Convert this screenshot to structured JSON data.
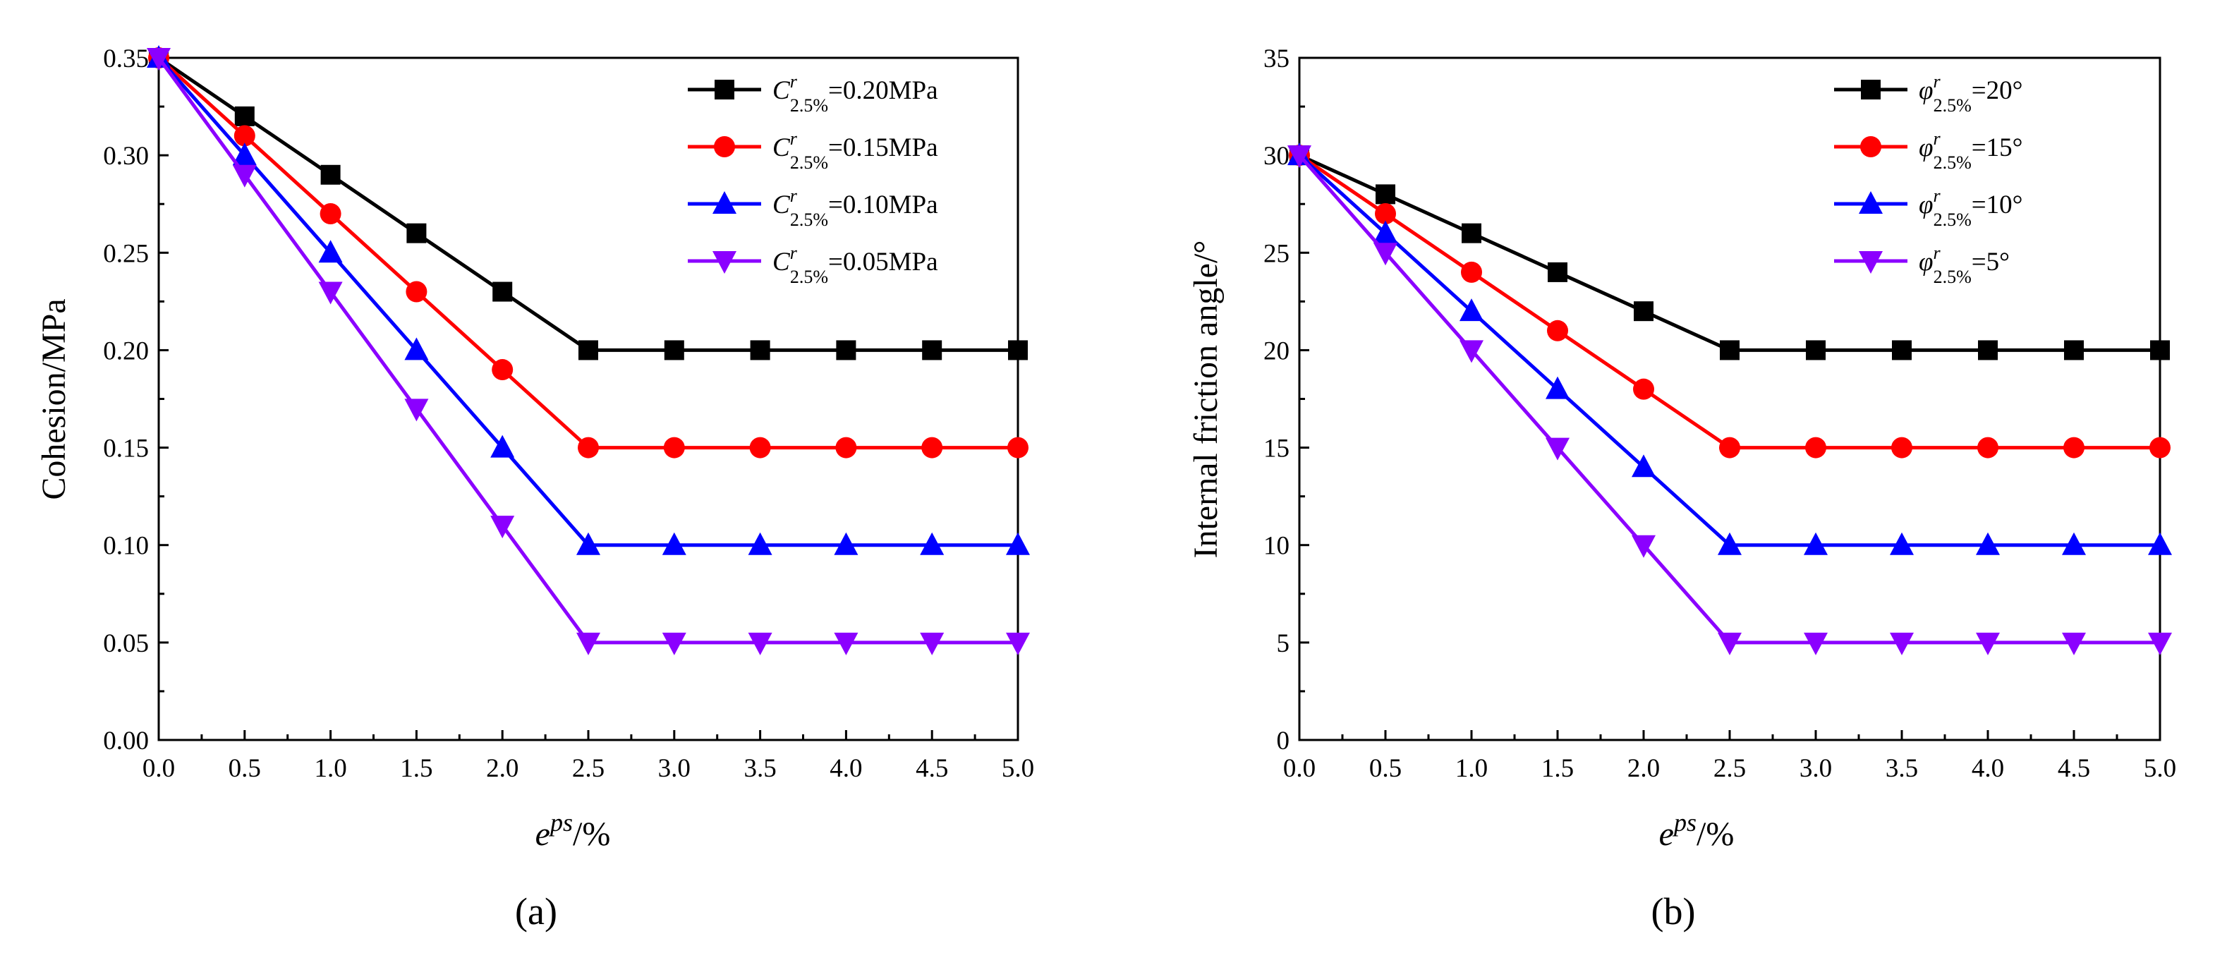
{
  "chart_data": [
    {
      "type": "line",
      "panel": "a",
      "caption": "(a)",
      "ylabel": "Cohesion/MPa",
      "xlabel": {
        "base": "e",
        "sup": "ps",
        "suffix": "/%"
      },
      "x": [
        0.0,
        0.5,
        1.0,
        1.5,
        2.0,
        2.5,
        3.0,
        3.5,
        4.0,
        4.5,
        5.0
      ],
      "xlim": [
        0.0,
        5.0
      ],
      "ylim": [
        0.0,
        0.35
      ],
      "xticks": [
        "0.0",
        "0.5",
        "1.0",
        "1.5",
        "2.0",
        "2.5",
        "3.0",
        "3.5",
        "4.0",
        "4.5",
        "5.0"
      ],
      "yticks": [
        "0.00",
        "0.05",
        "0.10",
        "0.15",
        "0.20",
        "0.25",
        "0.30",
        "0.35"
      ],
      "ytick_values": [
        0.0,
        0.05,
        0.1,
        0.15,
        0.2,
        0.25,
        0.3,
        0.35
      ],
      "legend_position": "top-right",
      "series": [
        {
          "legend": {
            "base": "C",
            "sup": "r",
            "sub": "2.5%",
            "text": "=0.20MPa"
          },
          "marker": "square",
          "color": "#000000",
          "values": [
            0.35,
            0.32,
            0.29,
            0.26,
            0.23,
            0.2,
            0.2,
            0.2,
            0.2,
            0.2,
            0.2
          ]
        },
        {
          "legend": {
            "base": "C",
            "sup": "r",
            "sub": "2.5%",
            "text": "=0.15MPa"
          },
          "marker": "circle",
          "color": "#ff0000",
          "values": [
            0.35,
            0.31,
            0.27,
            0.23,
            0.19,
            0.15,
            0.15,
            0.15,
            0.15,
            0.15,
            0.15
          ]
        },
        {
          "legend": {
            "base": "C",
            "sup": "r",
            "sub": "2.5%",
            "text": "=0.10MPa"
          },
          "marker": "triangle-up",
          "color": "#0000ff",
          "values": [
            0.35,
            0.3,
            0.25,
            0.2,
            0.15,
            0.1,
            0.1,
            0.1,
            0.1,
            0.1,
            0.1
          ]
        },
        {
          "legend": {
            "base": "C",
            "sup": "r",
            "sub": "2.5%",
            "text": "=0.05MPa"
          },
          "marker": "triangle-down",
          "color": "#8b00ff",
          "values": [
            0.35,
            0.29,
            0.23,
            0.17,
            0.11,
            0.05,
            0.05,
            0.05,
            0.05,
            0.05,
            0.05
          ]
        }
      ]
    },
    {
      "type": "line",
      "panel": "b",
      "caption": "(b)",
      "ylabel": "Internal friction angle/°",
      "xlabel": {
        "base": "e",
        "sup": "ps",
        "suffix": "/%"
      },
      "x": [
        0.0,
        0.5,
        1.0,
        1.5,
        2.0,
        2.5,
        3.0,
        3.5,
        4.0,
        4.5,
        5.0
      ],
      "xlim": [
        0.0,
        5.0
      ],
      "ylim": [
        0,
        35
      ],
      "xticks": [
        "0.0",
        "0.5",
        "1.0",
        "1.5",
        "2.0",
        "2.5",
        "3.0",
        "3.5",
        "4.0",
        "4.5",
        "5.0"
      ],
      "yticks": [
        "0",
        "5",
        "10",
        "15",
        "20",
        "25",
        "30",
        "35"
      ],
      "ytick_values": [
        0,
        5,
        10,
        15,
        20,
        25,
        30,
        35
      ],
      "legend_position": "top-right",
      "series": [
        {
          "legend": {
            "base": "φ",
            "sup": "r",
            "sub": "2.5%",
            "text": "=20°"
          },
          "marker": "square",
          "color": "#000000",
          "values": [
            30,
            28,
            26,
            24,
            22,
            20,
            20,
            20,
            20,
            20,
            20
          ]
        },
        {
          "legend": {
            "base": "φ",
            "sup": "r",
            "sub": "2.5%",
            "text": "=15°"
          },
          "marker": "circle",
          "color": "#ff0000",
          "values": [
            30,
            27,
            24,
            21,
            18,
            15,
            15,
            15,
            15,
            15,
            15
          ]
        },
        {
          "legend": {
            "base": "φ",
            "sup": "r",
            "sub": "2.5%",
            "text": "=10°"
          },
          "marker": "triangle-up",
          "color": "#0000ff",
          "values": [
            30,
            26,
            22,
            18,
            14,
            10,
            10,
            10,
            10,
            10,
            10
          ]
        },
        {
          "legend": {
            "base": "φ",
            "sup": "r",
            "sub": "2.5%",
            "text": "=5°"
          },
          "marker": "triangle-down",
          "color": "#8b00ff",
          "values": [
            30,
            25,
            20,
            15,
            10,
            5,
            5,
            5,
            5,
            5,
            5
          ]
        }
      ]
    }
  ]
}
